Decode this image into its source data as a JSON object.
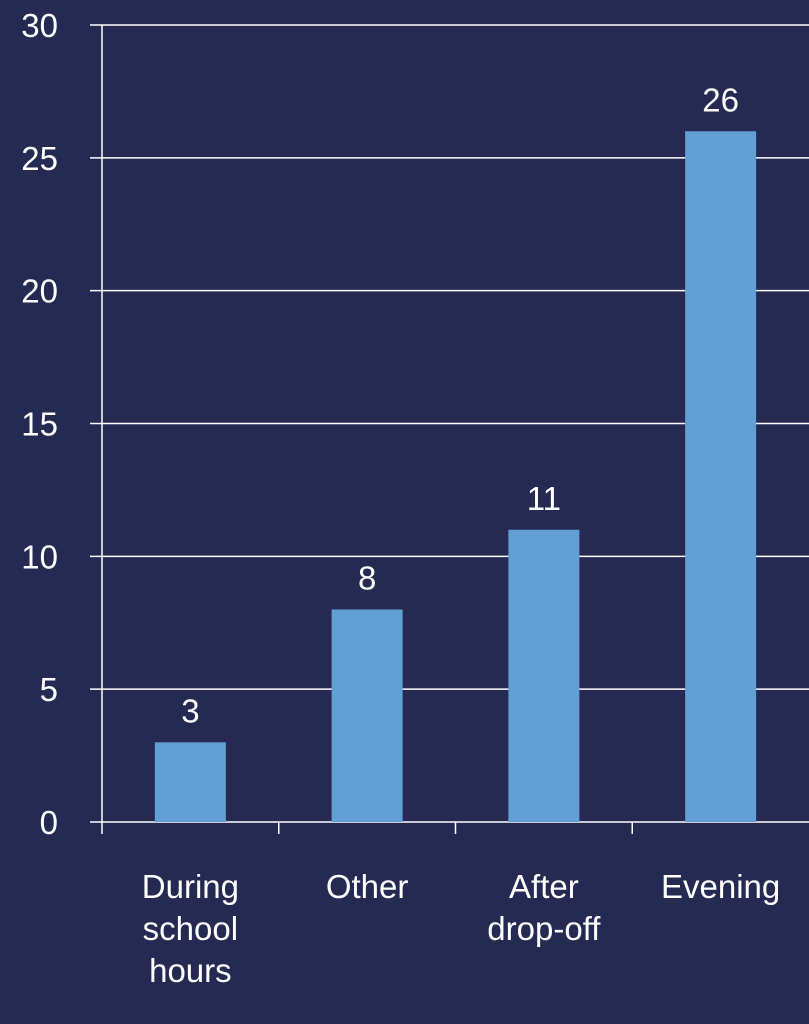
{
  "chart_data": {
    "type": "bar",
    "categories": [
      "During school hours",
      "Other",
      "After drop-off",
      "Evening"
    ],
    "category_lines": [
      [
        "During",
        "school",
        "hours"
      ],
      [
        "Other"
      ],
      [
        "After",
        "drop-off"
      ],
      [
        "Evening"
      ]
    ],
    "values": [
      3,
      8,
      11,
      26
    ],
    "data_labels": [
      "3",
      "8",
      "11",
      "26"
    ],
    "title": "",
    "xlabel": "",
    "ylabel": "",
    "ylim": [
      0,
      30
    ],
    "yticks": [
      0,
      5,
      10,
      15,
      20,
      25,
      30
    ],
    "ytick_labels": [
      "0",
      "5",
      "10",
      "15",
      "20",
      "25",
      "30"
    ],
    "grid": true,
    "legend": "none"
  },
  "colors": {
    "background": "#262a52",
    "bar": "#619fd4",
    "gridline": "#ffffff",
    "text": "#ffffff"
  }
}
